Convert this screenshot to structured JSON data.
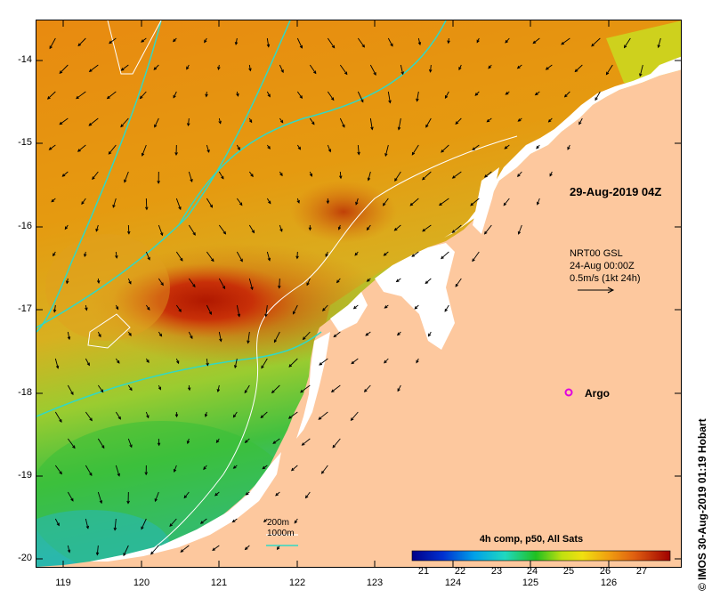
{
  "title": "29-Aug-2019 04Z",
  "legend": {
    "line1": "NRT00 GSL",
    "line2": "24-Aug 00:00Z",
    "line3": "0.5m/s (1kt 24h)"
  },
  "argo_label": "Argo",
  "depth_key": {
    "line1": "200m",
    "line2": "1000m"
  },
  "colorbar": {
    "title": "4h comp, p50, All Sats",
    "ticks": [
      "21",
      "22",
      "23",
      "24",
      "25",
      "26",
      "27"
    ]
  },
  "credit": "© IMOS 30-Aug-2019 01:19 Hobart",
  "axes": {
    "lat_labels": [
      "-14",
      "-15",
      "-16",
      "-17",
      "-18",
      "-19",
      "-20"
    ],
    "lon_labels": [
      "119",
      "120",
      "121",
      "122",
      "123",
      "124",
      "125",
      "126"
    ]
  },
  "colors": {
    "land": "#fdc89e",
    "cloud": "#ffffff",
    "isobath_200m": "#ffffff",
    "isobath_1000m": "#31d8c4",
    "argo": "#e000e0"
  }
}
